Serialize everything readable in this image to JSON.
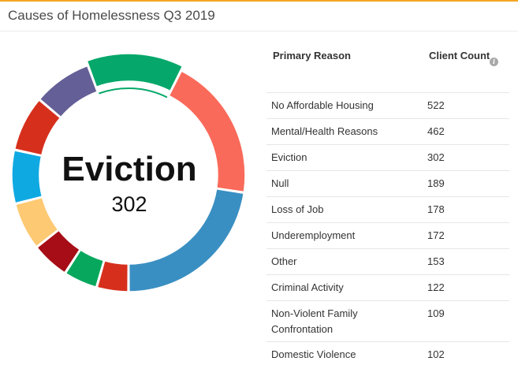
{
  "title": "Causes of Homelessness Q3 2019",
  "donut": {
    "center_label": "Eviction",
    "center_value": "302"
  },
  "table": {
    "header_reason": "Primary Reason",
    "header_count": "Client Count",
    "info_icon": "info-icon",
    "rows": [
      {
        "reason": "No Affordable Housing",
        "count": "522"
      },
      {
        "reason": "Mental/Health Reasons",
        "count": "462"
      },
      {
        "reason": "Eviction",
        "count": "302"
      },
      {
        "reason": "Null",
        "count": "189"
      },
      {
        "reason": "Loss of Job",
        "count": "178"
      },
      {
        "reason": "Underemployment",
        "count": "172"
      },
      {
        "reason": "Other",
        "count": "153"
      },
      {
        "reason": "Criminal Activity",
        "count": "122"
      },
      {
        "reason": "Non-Violent Family Confrontation",
        "count": "109"
      },
      {
        "reason": "Domestic Violence",
        "count": "102"
      }
    ]
  },
  "chart_data": {
    "type": "pie",
    "variant": "donut",
    "highlighted": "Eviction",
    "slices": [
      {
        "label": "No Affordable Housing",
        "value": 522,
        "color": "#3a8fc2"
      },
      {
        "label": "Mental/Health Reasons",
        "value": 462,
        "color": "#fa6a5a"
      },
      {
        "label": "Eviction",
        "value": 302,
        "color": "#05a86a"
      },
      {
        "label": "Null",
        "value": 189,
        "color": "#645f97"
      },
      {
        "label": "Loss of Job",
        "value": 178,
        "color": "#d6301d"
      },
      {
        "label": "Underemployment",
        "value": 172,
        "color": "#0fa9e2"
      },
      {
        "label": "Other",
        "value": 153,
        "color": "#fec973"
      },
      {
        "label": "Criminal Activity",
        "value": 122,
        "color": "#a60d16"
      },
      {
        "label": "Non-Violent Family Confrontation",
        "value": 109,
        "color": "#07a85d"
      },
      {
        "label": "Domestic Violence",
        "value": 102,
        "color": "#d6301d"
      }
    ]
  }
}
